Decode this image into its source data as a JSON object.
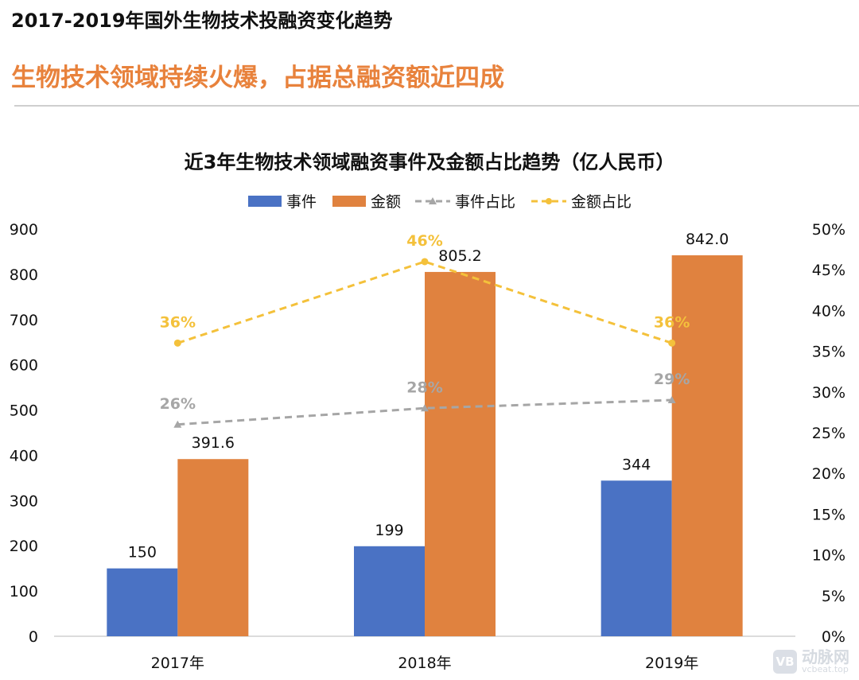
{
  "header": {
    "title": "2017-2019年国外生物技术投融资变化趋势",
    "subtitle": "生物技术领域持续火爆，占据总融资额近四成"
  },
  "colors": {
    "events": "#4a72c4",
    "amount": "#e0823f",
    "events_ratio": "#a6a6a6",
    "amount_ratio": "#f4c13b",
    "subtitle": "#e8823c"
  },
  "chart_data": {
    "type": "bar",
    "title": "近3年生物技术领域融资事件及金额占比趋势（亿人民币）",
    "categories": [
      "2017年",
      "2018年",
      "2019年"
    ],
    "series": [
      {
        "name": "事件",
        "kind": "bar",
        "axis": "left",
        "values": [
          150,
          199,
          344
        ],
        "labels": [
          "150",
          "199",
          "344"
        ]
      },
      {
        "name": "金额",
        "kind": "bar",
        "axis": "left",
        "values": [
          391.6,
          805.2,
          842.0
        ],
        "labels": [
          "391.6",
          "805.2",
          "842.0"
        ]
      },
      {
        "name": "事件占比",
        "kind": "line",
        "axis": "right",
        "values": [
          26,
          28,
          29
        ],
        "labels": [
          "26%",
          "28%",
          "29%"
        ]
      },
      {
        "name": "金额占比",
        "kind": "line",
        "axis": "right",
        "values": [
          36,
          46,
          36
        ],
        "labels": [
          "36%",
          "46%",
          "36%"
        ]
      }
    ],
    "y_left": {
      "min": 0,
      "max": 900,
      "ticks": [
        "0",
        "100",
        "200",
        "300",
        "400",
        "500",
        "600",
        "700",
        "800",
        "900"
      ]
    },
    "y_right": {
      "min": 0,
      "max": 50,
      "ticks": [
        "0%",
        "5%",
        "10%",
        "15%",
        "20%",
        "25%",
        "30%",
        "35%",
        "40%",
        "45%",
        "50%"
      ]
    },
    "legend": [
      "事件",
      "金额",
      "事件占比",
      "金额占比"
    ],
    "legend_position": "top-center",
    "grid": false
  },
  "watermark": {
    "logo": "VB",
    "name": "动脉网",
    "url": "vcbeat.top"
  }
}
